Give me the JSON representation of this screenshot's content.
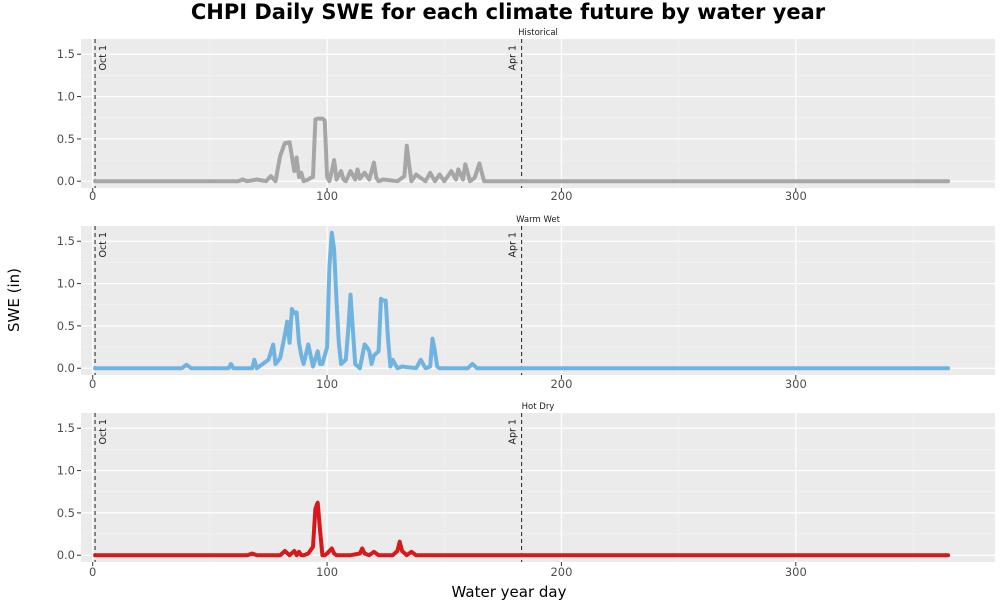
{
  "chart_data": {
    "type": "line",
    "title": "CHPI Daily SWE for each climate future by water year",
    "xlabel": "Water year day",
    "ylabel": "SWE (in)",
    "xlim": [
      -5,
      385
    ],
    "ylim": [
      -0.08,
      1.68
    ],
    "x_ticks": [
      0,
      100,
      200,
      300
    ],
    "y_ticks": [
      0.0,
      0.5,
      1.0,
      1.5
    ],
    "y_tick_labels": [
      "0.0",
      "0.5",
      "1.0",
      "1.5"
    ],
    "grid": true,
    "reference_lines": [
      {
        "x": 1,
        "label": "Oct 1"
      },
      {
        "x": 183,
        "label": "Apr 1"
      }
    ],
    "panels": [
      {
        "name": "Historical",
        "color": "#a6a6a6",
        "x": [
          1,
          62,
          64,
          66,
          70,
          74,
          76,
          78,
          80,
          82,
          84,
          86,
          87,
          88,
          89,
          90,
          92,
          93,
          94,
          95,
          96,
          98,
          99,
          100,
          101,
          102,
          103,
          104,
          106,
          107,
          108,
          110,
          112,
          113,
          114,
          116,
          118,
          120,
          121,
          122,
          124,
          130,
          133,
          134,
          135,
          136,
          138,
          142,
          144,
          146,
          148,
          150,
          153,
          155,
          156,
          158,
          159,
          160,
          161,
          163,
          165,
          166,
          167,
          169,
          365
        ],
        "values": [
          0,
          0,
          0.02,
          0,
          0.02,
          0,
          0.06,
          0,
          0.3,
          0.45,
          0.46,
          0.12,
          0.28,
          0.05,
          0.1,
          0,
          0.02,
          0.04,
          0.05,
          0.73,
          0.74,
          0.74,
          0.72,
          0.05,
          0,
          0.12,
          0.25,
          0.02,
          0.12,
          0.02,
          0,
          0.12,
          0.02,
          0.14,
          0.03,
          0.1,
          0.02,
          0.22,
          0.04,
          0,
          0.02,
          0,
          0.06,
          0.42,
          0.2,
          0,
          0.08,
          0,
          0.1,
          0,
          0.08,
          0,
          0.12,
          0.02,
          0.14,
          0.02,
          0.2,
          0.1,
          0,
          0.04,
          0.21,
          0.1,
          0,
          0,
          0
        ]
      },
      {
        "name": "Warm Wet",
        "color": "#6fb4e0",
        "x": [
          1,
          38,
          40,
          42,
          58,
          59,
          60,
          68,
          69,
          70,
          75,
          77,
          78,
          80,
          82,
          83,
          84,
          85,
          86,
          87,
          88,
          89,
          90,
          92,
          94,
          96,
          97,
          98,
          100,
          101,
          102,
          103,
          104,
          105,
          106,
          108,
          109,
          110,
          111,
          112,
          114,
          116,
          117,
          118,
          119,
          120,
          122,
          123,
          124,
          125,
          126,
          127,
          128,
          130,
          132,
          138,
          140,
          142,
          144,
          145,
          146,
          147,
          148,
          160,
          162,
          164,
          365
        ],
        "values": [
          0,
          0,
          0.04,
          0,
          0,
          0.05,
          0,
          0,
          0.1,
          0,
          0.1,
          0.28,
          0.05,
          0.12,
          0.4,
          0.55,
          0.3,
          0.7,
          0.65,
          0.66,
          0.3,
          0.15,
          0.05,
          0.28,
          0.02,
          0.2,
          0.05,
          0.05,
          0.25,
          1.2,
          1.6,
          1.4,
          0.8,
          0.3,
          0.05,
          0.1,
          0.45,
          0.87,
          0.45,
          0.05,
          0,
          0.28,
          0.25,
          0.2,
          0.05,
          0.15,
          0.2,
          0.82,
          0.8,
          0.8,
          0.35,
          0.02,
          0.1,
          0,
          0.02,
          0,
          0.1,
          0,
          0.02,
          0.35,
          0.2,
          0.02,
          0,
          0,
          0.05,
          0,
          0
        ]
      },
      {
        "name": "Hot Dry",
        "color": "#d7191c",
        "x": [
          1,
          66,
          68,
          70,
          80,
          82,
          84,
          86,
          87,
          88,
          89,
          90,
          92,
          94,
          95,
          96,
          97,
          98,
          99,
          100,
          101,
          102,
          103,
          104,
          110,
          114,
          115,
          116,
          118,
          120,
          122,
          124,
          128,
          130,
          131,
          132,
          134,
          136,
          138,
          365
        ],
        "values": [
          0,
          0,
          0.02,
          0,
          0,
          0.05,
          0,
          0.05,
          0,
          0.04,
          0,
          0,
          0.02,
          0.1,
          0.55,
          0.62,
          0.3,
          0,
          0,
          0.02,
          0.05,
          0.08,
          0.02,
          0,
          0,
          0.02,
          0.08,
          0.02,
          0,
          0.04,
          0,
          0,
          0,
          0.05,
          0.16,
          0.05,
          0,
          0.04,
          0,
          0
        ]
      }
    ]
  }
}
